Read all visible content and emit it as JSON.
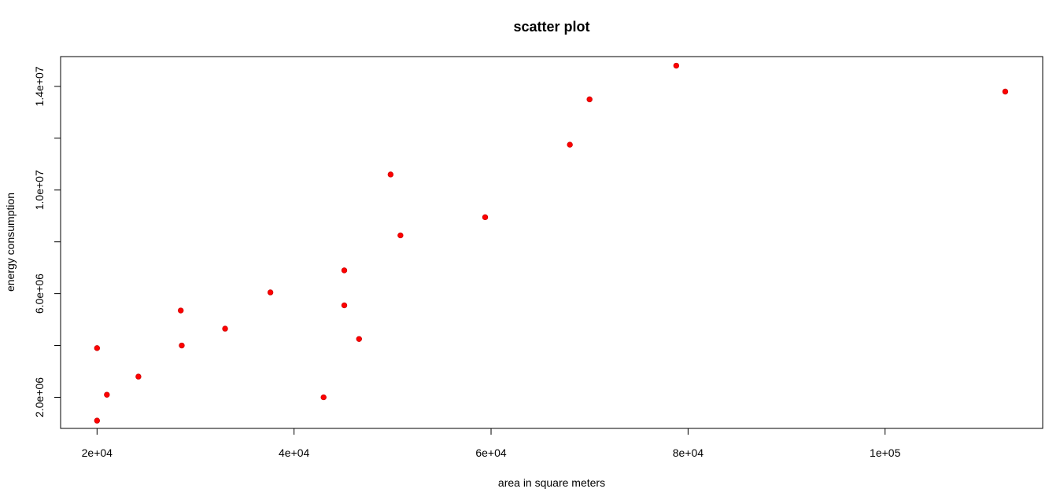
{
  "chart_data": {
    "type": "scatter",
    "title": "scatter plot",
    "xlabel": "area in square meters",
    "ylabel": "energy consumption",
    "xlim": [
      16300,
      116000
    ],
    "ylim": [
      800000,
      15150000
    ],
    "xticks": [
      {
        "value": 20000,
        "label": "2e+04"
      },
      {
        "value": 40000,
        "label": "4e+04"
      },
      {
        "value": 60000,
        "label": "6e+04"
      },
      {
        "value": 80000,
        "label": "8e+04"
      },
      {
        "value": 100000,
        "label": "1e+05"
      }
    ],
    "yticks": [
      {
        "value": 2000000,
        "label": "2.0e+06"
      },
      {
        "value": 4000000,
        "label": ""
      },
      {
        "value": 6000000,
        "label": "6.0e+06"
      },
      {
        "value": 8000000,
        "label": ""
      },
      {
        "value": 10000000,
        "label": "1.0e+07"
      },
      {
        "value": 12000000,
        "label": ""
      },
      {
        "value": 14000000,
        "label": "1.4e+07"
      }
    ],
    "grid": false,
    "point_color": "#ff0000",
    "point_edge_color": "#cc0000",
    "points": [
      {
        "x": 20000,
        "y": 1100000
      },
      {
        "x": 20000,
        "y": 3900000
      },
      {
        "x": 21000,
        "y": 2100000
      },
      {
        "x": 24200,
        "y": 2800000
      },
      {
        "x": 28600,
        "y": 4000000
      },
      {
        "x": 28500,
        "y": 5350000
      },
      {
        "x": 33000,
        "y": 4650000
      },
      {
        "x": 37600,
        "y": 6050000
      },
      {
        "x": 43000,
        "y": 2000000
      },
      {
        "x": 45100,
        "y": 6900000
      },
      {
        "x": 45100,
        "y": 5550000
      },
      {
        "x": 46600,
        "y": 4250000
      },
      {
        "x": 49800,
        "y": 10600000
      },
      {
        "x": 50800,
        "y": 8250000
      },
      {
        "x": 59400,
        "y": 8950000
      },
      {
        "x": 68000,
        "y": 11750000
      },
      {
        "x": 70000,
        "y": 13500000
      },
      {
        "x": 78800,
        "y": 14800000
      },
      {
        "x": 112200,
        "y": 13800000
      }
    ]
  }
}
